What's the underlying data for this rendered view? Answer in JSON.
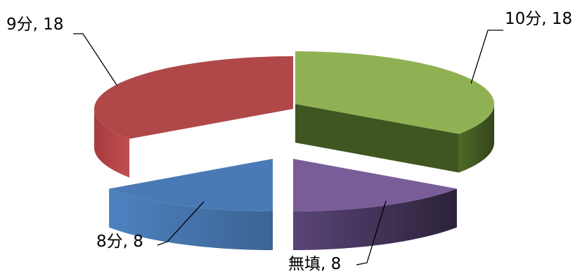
{
  "chart_data": {
    "type": "pie",
    "title": "",
    "categories": [
      "10分",
      "無填",
      "8分",
      "9分"
    ],
    "values": [
      18,
      8,
      8,
      18
    ],
    "labels": [
      "10分, 18",
      "無填, 8",
      "8分, 8",
      "9分, 18"
    ],
    "colors": [
      "#8fb153",
      "#795d98",
      "#4a7ab5",
      "#b0484a"
    ],
    "style": "3d-exploded",
    "legend": "none"
  }
}
